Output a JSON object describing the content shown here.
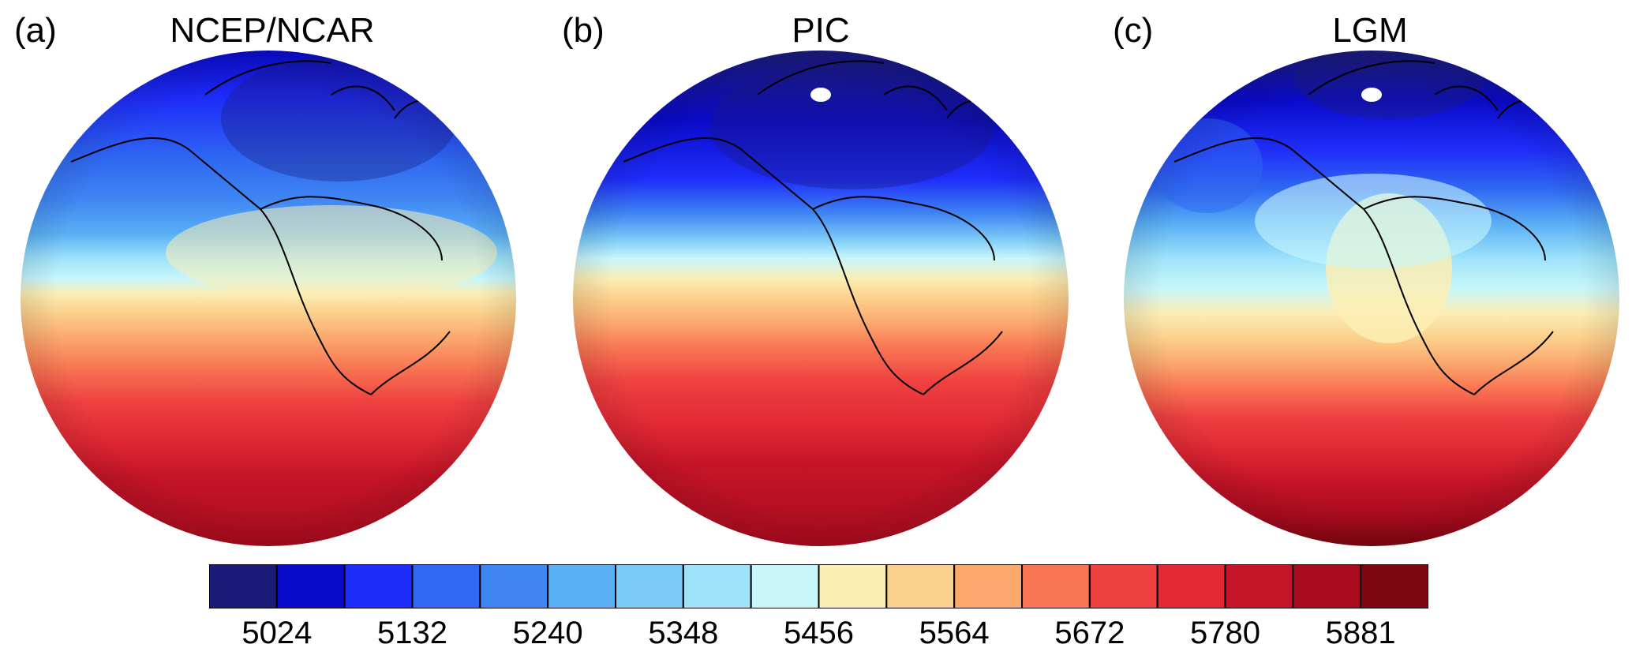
{
  "panels": [
    {
      "letter": "(a)",
      "title": "NCEP/NCAR",
      "pole_marker": false
    },
    {
      "letter": "(b)",
      "title": "PIC",
      "pole_marker": true
    },
    {
      "letter": "(c)",
      "title": "LGM",
      "pole_marker": true
    }
  ],
  "colorbar": {
    "colors": [
      "#1b1b78",
      "#0a0ac9",
      "#1f2dfa",
      "#2f68f2",
      "#3f86f3",
      "#5aaff5",
      "#7ccaf8",
      "#9ee3fa",
      "#c8f6fb",
      "#fbeeb4",
      "#fbd08d",
      "#fba86d",
      "#f97653",
      "#ef4040",
      "#e22a34",
      "#c51428",
      "#a90b1e",
      "#7e0610"
    ],
    "tick_labels": [
      "5024",
      "5132",
      "5240",
      "5348",
      "5456",
      "5564",
      "5672",
      "5780",
      "5881"
    ]
  }
}
